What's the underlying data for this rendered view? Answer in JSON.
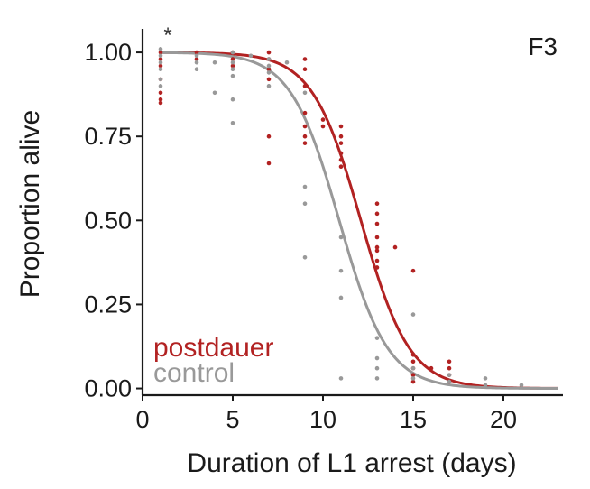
{
  "chart_data": {
    "type": "scatter",
    "panel_label": "F3",
    "annotation": "*",
    "xlabel": "Duration of L1 arrest (days)",
    "ylabel": "Proportion alive",
    "xlim": [
      0,
      23.3
    ],
    "ylim": [
      -0.02,
      1.07
    ],
    "x_ticks": [
      0,
      5,
      10,
      15,
      20
    ],
    "x_tick_labels": [
      "0",
      "5",
      "10",
      "15",
      "20"
    ],
    "y_ticks": [
      0,
      0.25,
      0.5,
      0.75,
      1.0
    ],
    "y_tick_labels": [
      "0.00",
      "0.25",
      "0.50",
      "0.75",
      "1.00"
    ],
    "grid": false,
    "legend": {
      "placement": "bottom-left",
      "entries": [
        {
          "label": "postdauer",
          "color": "#b22222"
        },
        {
          "label": "control",
          "color": "#999999"
        }
      ]
    },
    "series": [
      {
        "name": "postdauer",
        "color": "#b22222",
        "curve": {
          "model": "logistic",
          "midpoint": 12.1,
          "scale": 1.35
        },
        "points": [
          [
            1,
            1.0
          ],
          [
            1,
            0.98
          ],
          [
            1,
            0.96
          ],
          [
            1,
            0.92
          ],
          [
            1,
            0.88
          ],
          [
            1,
            0.86
          ],
          [
            1,
            0.85
          ],
          [
            3,
            1.0
          ],
          [
            3,
            0.98
          ],
          [
            5,
            1.0
          ],
          [
            5,
            0.98
          ],
          [
            5,
            0.96
          ],
          [
            7,
            1.0
          ],
          [
            7,
            0.98
          ],
          [
            7,
            0.95
          ],
          [
            7,
            0.92
          ],
          [
            7,
            0.67
          ],
          [
            7,
            0.75
          ],
          [
            9,
            0.98
          ],
          [
            9,
            0.95
          ],
          [
            9,
            0.9
          ],
          [
            9,
            0.82
          ],
          [
            9,
            0.78
          ],
          [
            9,
            0.75
          ],
          [
            9,
            0.73
          ],
          [
            10,
            0.8
          ],
          [
            10,
            0.78
          ],
          [
            11,
            0.78
          ],
          [
            11,
            0.75
          ],
          [
            11,
            0.73
          ],
          [
            11,
            0.7
          ],
          [
            11,
            0.68
          ],
          [
            11,
            0.66
          ],
          [
            13,
            0.55
          ],
          [
            13,
            0.52
          ],
          [
            13,
            0.49
          ],
          [
            13,
            0.45
          ],
          [
            13,
            0.42
          ],
          [
            13,
            0.41
          ],
          [
            13,
            0.38
          ],
          [
            13,
            0.36
          ],
          [
            14,
            0.42
          ],
          [
            15,
            0.35
          ],
          [
            15,
            0.1
          ],
          [
            15,
            0.08
          ],
          [
            15,
            0.06
          ],
          [
            15,
            0.04
          ],
          [
            15,
            0.02
          ],
          [
            16,
            0.06
          ],
          [
            17,
            0.08
          ],
          [
            17,
            0.06
          ],
          [
            17,
            0.04
          ],
          [
            17,
            0.02
          ]
        ]
      },
      {
        "name": "control",
        "color": "#999999",
        "curve": {
          "model": "logistic",
          "midpoint": 10.9,
          "scale": 1.35
        },
        "points": [
          [
            1,
            1.01
          ],
          [
            1,
            0.99
          ],
          [
            1,
            0.97
          ],
          [
            1,
            0.95
          ],
          [
            1,
            0.92
          ],
          [
            1,
            0.9
          ],
          [
            3,
            0.99
          ],
          [
            3,
            0.97
          ],
          [
            3,
            0.95
          ],
          [
            4,
            0.97
          ],
          [
            4,
            0.88
          ],
          [
            5,
            1.0
          ],
          [
            5,
            0.97
          ],
          [
            5,
            0.95
          ],
          [
            5,
            0.93
          ],
          [
            5,
            0.86
          ],
          [
            5,
            0.79
          ],
          [
            6,
            0.99
          ],
          [
            7,
            0.98
          ],
          [
            7,
            0.96
          ],
          [
            7,
            0.94
          ],
          [
            7,
            0.9
          ],
          [
            8,
            0.97
          ],
          [
            9,
            0.88
          ],
          [
            9,
            0.6
          ],
          [
            9,
            0.55
          ],
          [
            9,
            0.39
          ],
          [
            11,
            0.45
          ],
          [
            11,
            0.35
          ],
          [
            11,
            0.27
          ],
          [
            11,
            0.03
          ],
          [
            13,
            0.15
          ],
          [
            13,
            0.09
          ],
          [
            13,
            0.06
          ],
          [
            13,
            0.03
          ],
          [
            15,
            0.22
          ],
          [
            15,
            0.06
          ],
          [
            15,
            0.03
          ],
          [
            17,
            0.04
          ],
          [
            17,
            0.02
          ],
          [
            19,
            0.03
          ],
          [
            19,
            0.01
          ],
          [
            21,
            0.01
          ]
        ]
      }
    ]
  }
}
